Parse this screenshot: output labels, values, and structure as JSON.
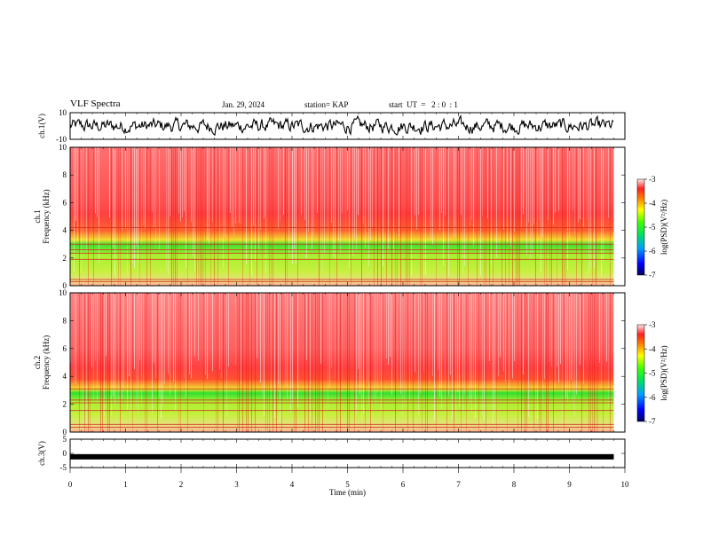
{
  "header": {
    "title": "VLF Spectra",
    "date": "Jan. 29, 2024",
    "station": "station= KAP",
    "start": "start  UT  =   2 : 0  : 1"
  },
  "chart_data": [
    {
      "type": "line",
      "name": "ch1-waveform",
      "ylabel": "ch.1(V)",
      "ylim": [
        -10,
        10
      ],
      "yticks": [
        "10",
        "-10"
      ],
      "xlim": [
        0,
        10
      ],
      "note": "dense noisy waveform roughly between -5 and 5 V over 0 to 9.8 min"
    },
    {
      "type": "heatmap",
      "name": "ch1-spectrogram",
      "ylabel": "ch.1\nFrequency (kHz)",
      "ylim": [
        0,
        10
      ],
      "yticks": [
        "0",
        "2",
        "4",
        "6",
        "8",
        "10"
      ],
      "xlim": [
        0,
        9.8
      ],
      "bands": [
        {
          "from": 0.0,
          "to": 0.5,
          "level": "yellow-red"
        },
        {
          "from": 0.5,
          "to": 3.3,
          "level": "green-yellow"
        },
        {
          "from": 3.3,
          "to": 5.2,
          "level": "orange-red"
        },
        {
          "from": 5.2,
          "to": 10.0,
          "level": "red"
        }
      ],
      "colorbar": {
        "label": "log(PSD)(V²/Hz)",
        "ticks": [
          "-3",
          "-4",
          "-5",
          "-6",
          "-7"
        ],
        "range": [
          -7,
          -3
        ]
      }
    },
    {
      "type": "heatmap",
      "name": "ch2-spectrogram",
      "ylabel": "ch.2\nFrequency (kHz)",
      "ylim": [
        0,
        10
      ],
      "yticks": [
        "0",
        "2",
        "4",
        "6",
        "8",
        "10"
      ],
      "xlim": [
        0,
        9.8
      ],
      "bands": [
        {
          "from": 0.0,
          "to": 0.6,
          "level": "yellow-red"
        },
        {
          "from": 0.6,
          "to": 3.1,
          "level": "green-yellow"
        },
        {
          "from": 3.1,
          "to": 4.3,
          "level": "orange-red"
        },
        {
          "from": 4.3,
          "to": 10.0,
          "level": "red"
        }
      ],
      "colorbar": {
        "label": "log(PSD)(V²/Hz)",
        "ticks": [
          "-3",
          "-4",
          "-5",
          "-6",
          "-7"
        ],
        "range": [
          -7,
          -3
        ]
      }
    },
    {
      "type": "line",
      "name": "ch3-waveform",
      "ylabel": "ch.3(V)",
      "ylim": [
        -5,
        5
      ],
      "yticks": [
        "5",
        "0",
        "-5"
      ],
      "xlim": [
        0,
        10
      ],
      "xlabel": "Time  (min)",
      "xticks": [
        "0",
        "1",
        "2",
        "3",
        "4",
        "5",
        "6",
        "7",
        "8",
        "9",
        "10"
      ],
      "note": "near-constant thick trace around -1.2 V from 0 to 9.8 min"
    }
  ],
  "colors": {
    "red": "#ff2020",
    "green": "#20e020",
    "yellow": "#ffd000",
    "blue": "#0000ff"
  }
}
